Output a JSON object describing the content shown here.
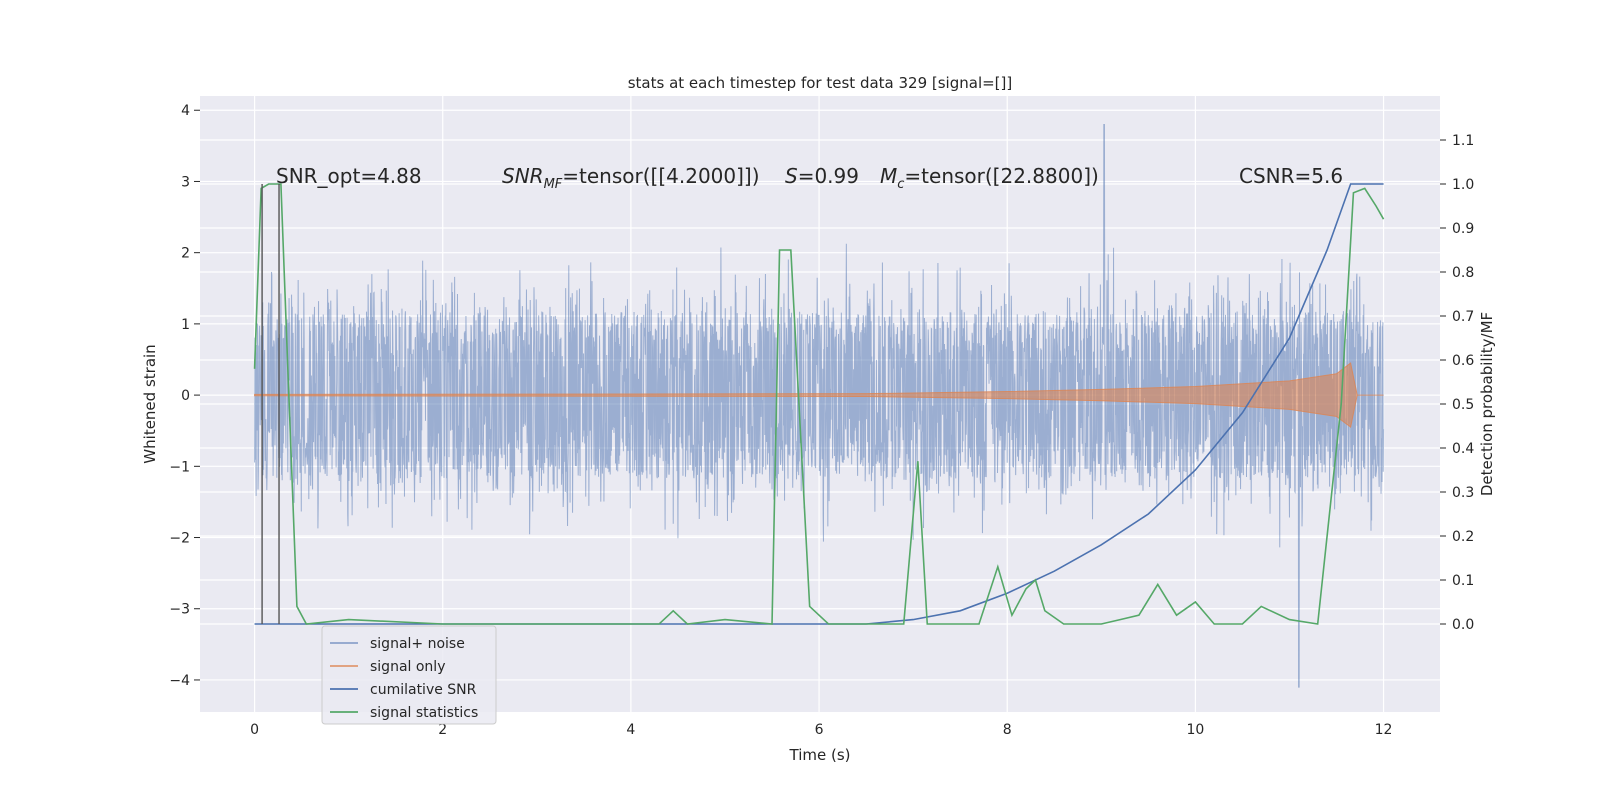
{
  "chart_data": {
    "type": "line",
    "title": "stats at each timestep for test data 329 [signal=[]]",
    "xlabel": "Time (s)",
    "ylabel": "Whitened strain",
    "ylabel_right": "Detection probability/MF",
    "xlim": [
      -0.58,
      12.6
    ],
    "ylim": [
      -4.45,
      4.2
    ],
    "ylim_right": [
      -0.2,
      1.2
    ],
    "x_ticks": [
      0,
      2,
      4,
      6,
      8,
      10,
      12
    ],
    "y_ticks": [
      -4,
      -3,
      -2,
      -1,
      0,
      1,
      2,
      3,
      4
    ],
    "y_ticks_right": [
      0.0,
      0.1,
      0.2,
      0.3,
      0.4,
      0.5,
      0.6,
      0.7,
      0.8,
      0.9,
      1.0,
      1.1
    ],
    "grid": true,
    "legend_placement": "lower-left",
    "annotations": {
      "snr_opt": "SNR_opt=4.88",
      "snr_mf_prefix": "SNR",
      "snr_mf_sub": "MF",
      "snr_mf_value": "=tensor([[4.2000]])",
      "s_prefix": "S",
      "s_value": "=0.99",
      "mc_prefix": "M",
      "mc_sub": "c",
      "mc_value": "=tensor([22.8800])",
      "csnr": "CSNR=5.6"
    },
    "vertical_lines_x": [
      0.08,
      0.26
    ],
    "series": [
      {
        "name": "signal+ noise",
        "color": "#4c72b0",
        "axis": "left",
        "envelope": {
          "typical_upper": 1.3,
          "typical_lower": -1.3,
          "max": 3.8,
          "max_at": 9.03,
          "min": -4.1,
          "min_at": 11.1
        }
      },
      {
        "name": "signal only",
        "color": "#dd8452",
        "axis": "left",
        "points": [
          [
            0,
            0.01
          ],
          [
            6.5,
            0.02
          ],
          [
            8,
            0.05
          ],
          [
            9,
            0.08
          ],
          [
            10,
            0.12
          ],
          [
            11,
            0.2
          ],
          [
            11.5,
            0.3
          ],
          [
            11.65,
            0.45
          ],
          [
            11.72,
            0.0
          ],
          [
            12,
            0.0
          ]
        ]
      },
      {
        "name": "cumilative SNR",
        "color": "#4c72b0",
        "axis": "right",
        "points": [
          [
            0,
            0.0
          ],
          [
            6.5,
            0.0
          ],
          [
            7,
            0.01
          ],
          [
            7.5,
            0.03
          ],
          [
            8,
            0.07
          ],
          [
            8.5,
            0.12
          ],
          [
            9,
            0.18
          ],
          [
            9.5,
            0.25
          ],
          [
            10,
            0.35
          ],
          [
            10.5,
            0.48
          ],
          [
            11,
            0.65
          ],
          [
            11.4,
            0.85
          ],
          [
            11.65,
            1.0
          ],
          [
            12,
            1.0
          ]
        ]
      },
      {
        "name": "signal statistics",
        "color": "#55a868",
        "axis": "right",
        "points": [
          [
            0,
            0.58
          ],
          [
            0.07,
            0.99
          ],
          [
            0.15,
            1.0
          ],
          [
            0.28,
            1.0
          ],
          [
            0.35,
            0.6
          ],
          [
            0.45,
            0.04
          ],
          [
            0.55,
            0.0
          ],
          [
            1.0,
            0.01
          ],
          [
            2.0,
            0.0
          ],
          [
            4.3,
            0.0
          ],
          [
            4.45,
            0.03
          ],
          [
            4.6,
            0.0
          ],
          [
            5.0,
            0.01
          ],
          [
            5.5,
            0.0
          ],
          [
            5.58,
            0.85
          ],
          [
            5.7,
            0.85
          ],
          [
            5.9,
            0.04
          ],
          [
            6.1,
            0.0
          ],
          [
            6.5,
            0.0
          ],
          [
            6.9,
            0.0
          ],
          [
            7.05,
            0.37
          ],
          [
            7.15,
            0.0
          ],
          [
            7.7,
            0.0
          ],
          [
            7.9,
            0.13
          ],
          [
            8.05,
            0.02
          ],
          [
            8.2,
            0.08
          ],
          [
            8.3,
            0.1
          ],
          [
            8.4,
            0.03
          ],
          [
            8.6,
            0.0
          ],
          [
            9.0,
            0.0
          ],
          [
            9.2,
            0.01
          ],
          [
            9.4,
            0.02
          ],
          [
            9.6,
            0.09
          ],
          [
            9.8,
            0.02
          ],
          [
            10.0,
            0.05
          ],
          [
            10.2,
            0.0
          ],
          [
            10.5,
            0.0
          ],
          [
            10.7,
            0.04
          ],
          [
            11.0,
            0.01
          ],
          [
            11.3,
            0.0
          ],
          [
            11.55,
            0.5
          ],
          [
            11.68,
            0.98
          ],
          [
            11.8,
            0.99
          ],
          [
            11.92,
            0.95
          ],
          [
            12.0,
            0.92
          ]
        ]
      }
    ]
  }
}
